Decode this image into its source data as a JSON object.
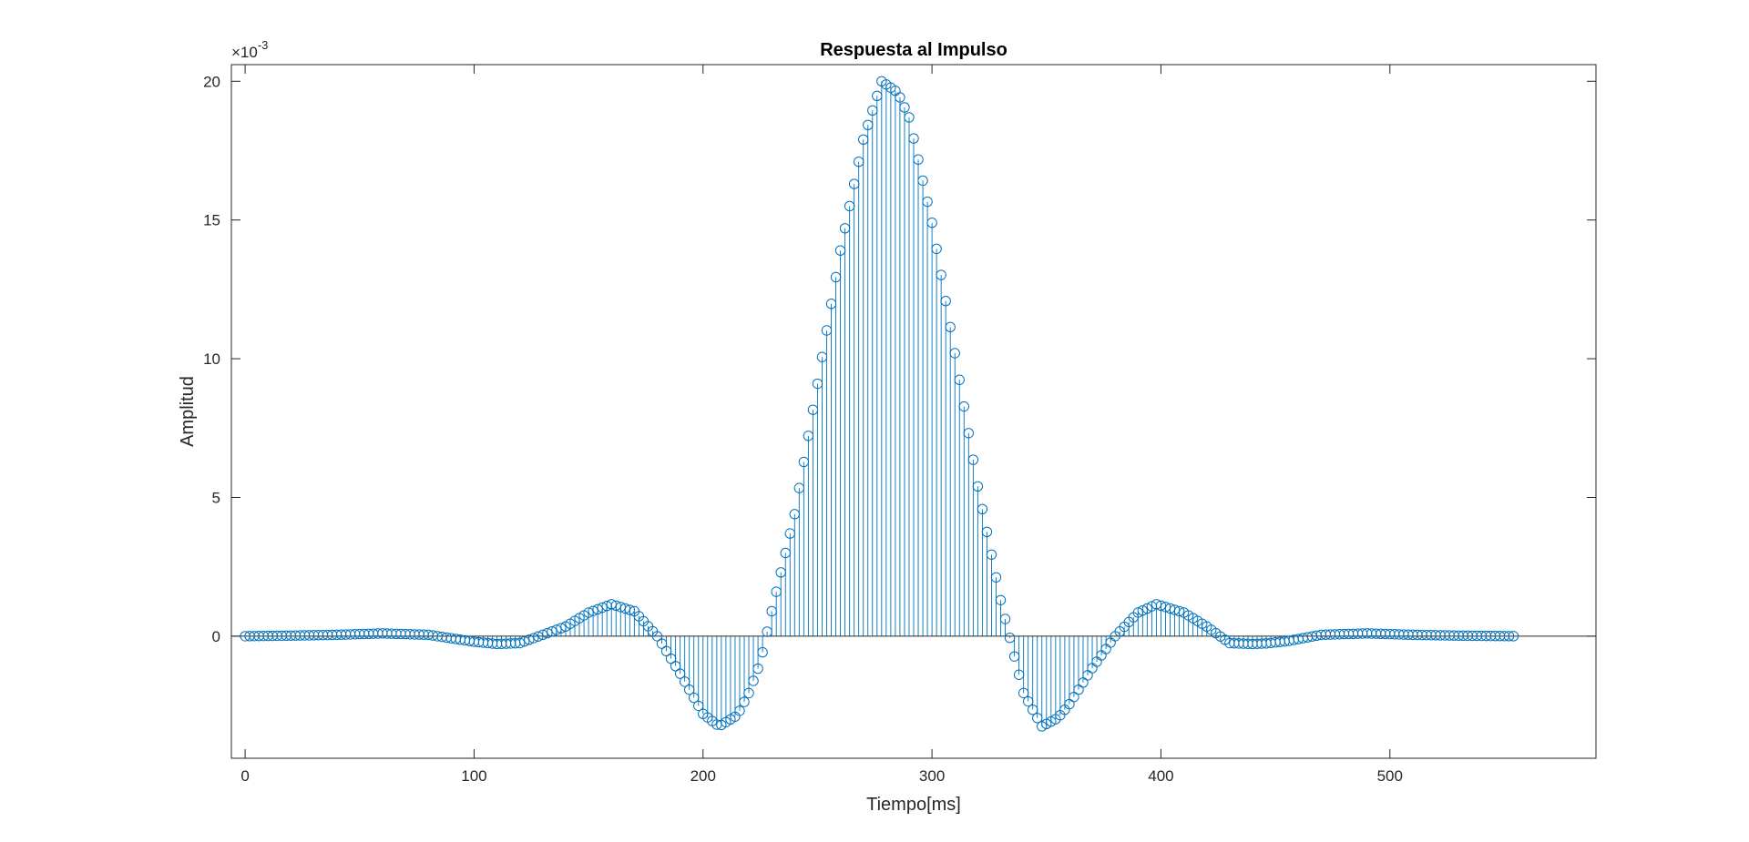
{
  "chart_data": {
    "type": "stem",
    "title": "Respuesta al Impulso",
    "xlabel": "Tiempo[ms]",
    "ylabel": "Amplitud",
    "exponent_label": "×10",
    "exponent_power": "-3",
    "xlim": [
      -6,
      590
    ],
    "ylim": [
      -4.4,
      20.6
    ],
    "xticks": [
      0,
      100,
      200,
      300,
      400,
      500
    ],
    "yticks": [
      0,
      5,
      10,
      15,
      20
    ],
    "x_tick_labels": [
      "0",
      "100",
      "200",
      "300",
      "400",
      "500"
    ],
    "y_tick_labels": [
      "0",
      "5",
      "10",
      "15",
      "20"
    ],
    "grid": false,
    "baseline": 0,
    "series": [
      {
        "color": "#0072BD",
        "marker": "open-circle",
        "x": [
          0,
          20,
          40,
          60,
          80,
          100,
          110,
          120,
          140,
          150,
          160,
          170,
          180,
          190,
          200,
          207,
          215,
          220,
          225,
          230,
          240,
          250,
          260,
          270,
          278,
          285,
          290,
          300,
          310,
          320,
          330,
          335,
          340,
          348,
          355,
          360,
          370,
          380,
          390,
          398,
          410,
          420,
          430,
          440,
          446,
          455,
          470,
          490,
          510,
          530,
          555
        ],
        "y": [
          0.0,
          0.02,
          0.05,
          0.1,
          0.05,
          -0.2,
          -0.28,
          -0.25,
          0.35,
          0.85,
          1.15,
          0.9,
          0.0,
          -1.35,
          -2.8,
          -3.25,
          -2.85,
          -2.05,
          -0.95,
          0.9,
          4.4,
          9.1,
          13.9,
          17.9,
          20.0,
          19.6,
          18.7,
          14.9,
          10.2,
          5.4,
          1.3,
          -0.4,
          -2.05,
          -3.25,
          -2.95,
          -2.45,
          -1.15,
          0.0,
          0.85,
          1.15,
          0.85,
          0.35,
          -0.25,
          -0.28,
          -0.26,
          -0.18,
          0.05,
          0.1,
          0.05,
          0.02,
          0.0
        ]
      }
    ]
  }
}
